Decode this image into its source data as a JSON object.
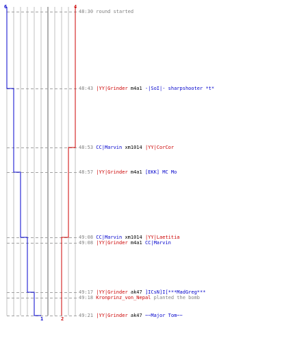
{
  "score_markers": {
    "blue_start": "6",
    "red_start": "4",
    "blue_end": "1",
    "red_end": "2"
  },
  "colors": {
    "red": "#cc0000",
    "blue": "#0000cc",
    "gray": "#808080",
    "grid": "#c0c0c0",
    "dash": "#a0a0a0"
  },
  "events": [
    {
      "time": "48:30",
      "parts": [
        {
          "text": "round started",
          "color": "gray"
        }
      ]
    },
    {
      "time": "48:43",
      "parts": [
        {
          "text": "|YY|Grinder",
          "color": "red"
        },
        {
          "text": " m4a1 ",
          "color": "black"
        },
        {
          "text": "-|SoI|- sharpshooter *t*",
          "color": "blue"
        }
      ]
    },
    {
      "time": "48:53",
      "parts": [
        {
          "text": "CC|Marvin",
          "color": "blue"
        },
        {
          "text": " xm1014 ",
          "color": "black"
        },
        {
          "text": "|YY|CorCor",
          "color": "red"
        }
      ]
    },
    {
      "time": "48:57",
      "parts": [
        {
          "text": "|YY|Grinder",
          "color": "red"
        },
        {
          "text": " m4a1 ",
          "color": "black"
        },
        {
          "text": "[EKK] MC Mo",
          "color": "blue"
        }
      ]
    },
    {
      "time": "49:08",
      "parts": [
        {
          "text": "CC|Marvin",
          "color": "blue"
        },
        {
          "text": " xm1014 ",
          "color": "black"
        },
        {
          "text": "|YY|Laetitia",
          "color": "red"
        }
      ]
    },
    {
      "time": "49:08",
      "parts": [
        {
          "text": "|YY|Grinder",
          "color": "red"
        },
        {
          "text": " m4a1 ",
          "color": "black"
        },
        {
          "text": "CC|Marvin",
          "color": "blue"
        }
      ]
    },
    {
      "time": "49:17",
      "parts": [
        {
          "text": "|YY|Grinder",
          "color": "red"
        },
        {
          "text": " ak47 ",
          "color": "black"
        },
        {
          "text": "]ICsN]I[***MadGreg***",
          "color": "blue"
        }
      ]
    },
    {
      "time": "49:18",
      "parts": [
        {
          "text": "Kronprinz_von_Nepal",
          "color": "red"
        },
        {
          "text": " planted the bomb",
          "color": "gray"
        }
      ]
    },
    {
      "time": "49:21",
      "parts": [
        {
          "text": "|YY|Grinder",
          "color": "red"
        },
        {
          "text": " ak47 ",
          "color": "black"
        },
        {
          "text": "~~Major Tom~~",
          "color": "blue"
        }
      ]
    }
  ]
}
